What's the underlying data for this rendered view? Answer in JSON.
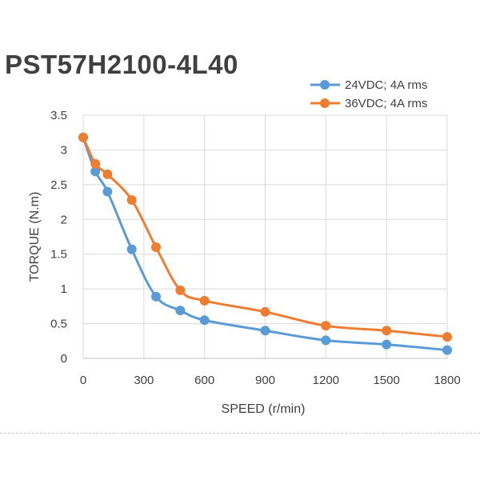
{
  "chart_data": {
    "type": "line",
    "title": "PST57H2100-4L40",
    "xlabel": "SPEED (r/min)",
    "ylabel": "TORQUE (N.m)",
    "xlim": [
      0,
      1800
    ],
    "ylim": [
      0,
      3.5
    ],
    "xticks": [
      "0",
      "300",
      "600",
      "900",
      "1200",
      "1500",
      "1800"
    ],
    "yticks": [
      "0",
      "0.5",
      "1",
      "1.5",
      "2",
      "2.5",
      "3",
      "3.5"
    ],
    "grid": true,
    "legend_position": "top-right",
    "series": [
      {
        "name": "24VDC; 4A rms",
        "color": "#5b9bd5",
        "x": [
          0,
          60,
          120,
          240,
          360,
          480,
          600,
          900,
          1200,
          1500,
          1800
        ],
        "values": [
          3.18,
          2.69,
          2.4,
          1.57,
          0.89,
          0.69,
          0.55,
          0.4,
          0.26,
          0.2,
          0.12
        ]
      },
      {
        "name": "36VDC; 4A rms",
        "color": "#ed7d31",
        "x": [
          0,
          60,
          120,
          240,
          360,
          480,
          600,
          900,
          1200,
          1500,
          1800
        ],
        "values": [
          3.18,
          2.8,
          2.65,
          2.28,
          1.6,
          0.98,
          0.83,
          0.67,
          0.47,
          0.4,
          0.31
        ]
      }
    ]
  }
}
